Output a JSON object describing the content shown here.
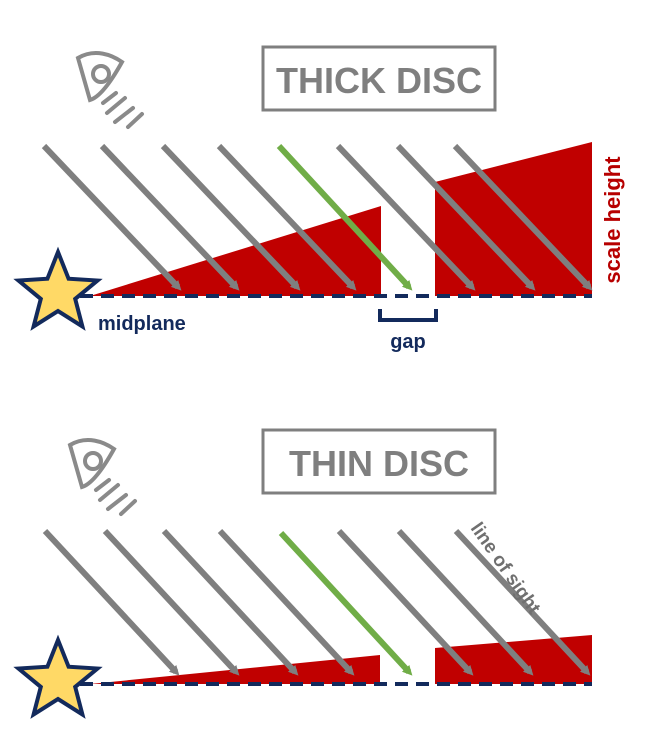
{
  "panels": {
    "thick": {
      "title": "THICK DISC"
    },
    "thin": {
      "title": "THIN DISC"
    }
  },
  "labels": {
    "midplane": "midplane",
    "gap": "gap",
    "scale_height": "scale height",
    "line_of_sight": "line of sight"
  },
  "colors": {
    "disc": "#c00000",
    "ray": "#7f7f7f",
    "highlight_ray": "#70ad47",
    "star_fill": "#ffd966",
    "navy": "#132a5c",
    "title_box": "#7f7f7f"
  },
  "icons": {
    "observer": "eye-icon",
    "star": "star-icon"
  }
}
